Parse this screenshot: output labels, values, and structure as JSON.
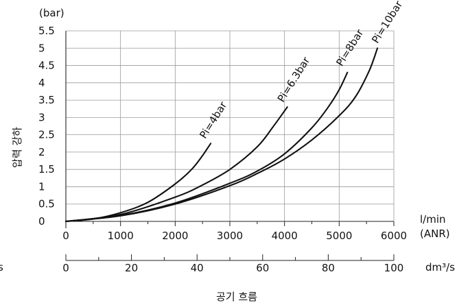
{
  "chart_data": {
    "type": "line",
    "title": "",
    "ylabel": "압력 강하",
    "yunit": "(bar)",
    "xlabel": "공기 흐름",
    "xunit_primary": [
      "l/min",
      "(ANR)"
    ],
    "xunit_secondary": "dm³/s",
    "secondary_left_stub": "s",
    "ylim": [
      0,
      5.5
    ],
    "xlim": [
      0,
      6000
    ],
    "yticks": [
      "0",
      "0.5",
      "1",
      "1.5",
      "2",
      "2.5",
      "3",
      "3.5",
      "4",
      "4.5",
      "5",
      "5.5"
    ],
    "xticks": [
      "0",
      "1000",
      "2000",
      "3000",
      "4000",
      "5000",
      "6000"
    ],
    "xticks_secondary": [
      "0",
      "20",
      "40",
      "60",
      "80",
      "100"
    ],
    "xlim_secondary": [
      0,
      100
    ],
    "grid": true,
    "series": [
      {
        "name": "Pi=4bar",
        "x": [
          0,
          500,
          1000,
          1500,
          2000,
          2300,
          2500,
          2650
        ],
        "y": [
          0,
          0.07,
          0.25,
          0.55,
          1.08,
          1.5,
          1.9,
          2.25
        ]
      },
      {
        "name": "Pi=6.3bar",
        "x": [
          0,
          1000,
          2000,
          2500,
          3000,
          3500,
          3800,
          4050
        ],
        "y": [
          0,
          0.2,
          0.7,
          1.05,
          1.5,
          2.15,
          2.75,
          3.3
        ]
      },
      {
        "name": "Pi=8bar",
        "x": [
          0,
          1000,
          2000,
          3000,
          3500,
          4000,
          4500,
          4800,
          5000,
          5150
        ],
        "y": [
          0,
          0.17,
          0.53,
          1.1,
          1.45,
          1.95,
          2.7,
          3.3,
          3.8,
          4.3
        ]
      },
      {
        "name": "Pi=10bar",
        "x": [
          0,
          1000,
          2000,
          3000,
          3500,
          4000,
          4500,
          5000,
          5300,
          5550,
          5700
        ],
        "y": [
          0,
          0.16,
          0.5,
          1.03,
          1.38,
          1.8,
          2.35,
          3.05,
          3.6,
          4.35,
          5.0
        ]
      }
    ]
  }
}
